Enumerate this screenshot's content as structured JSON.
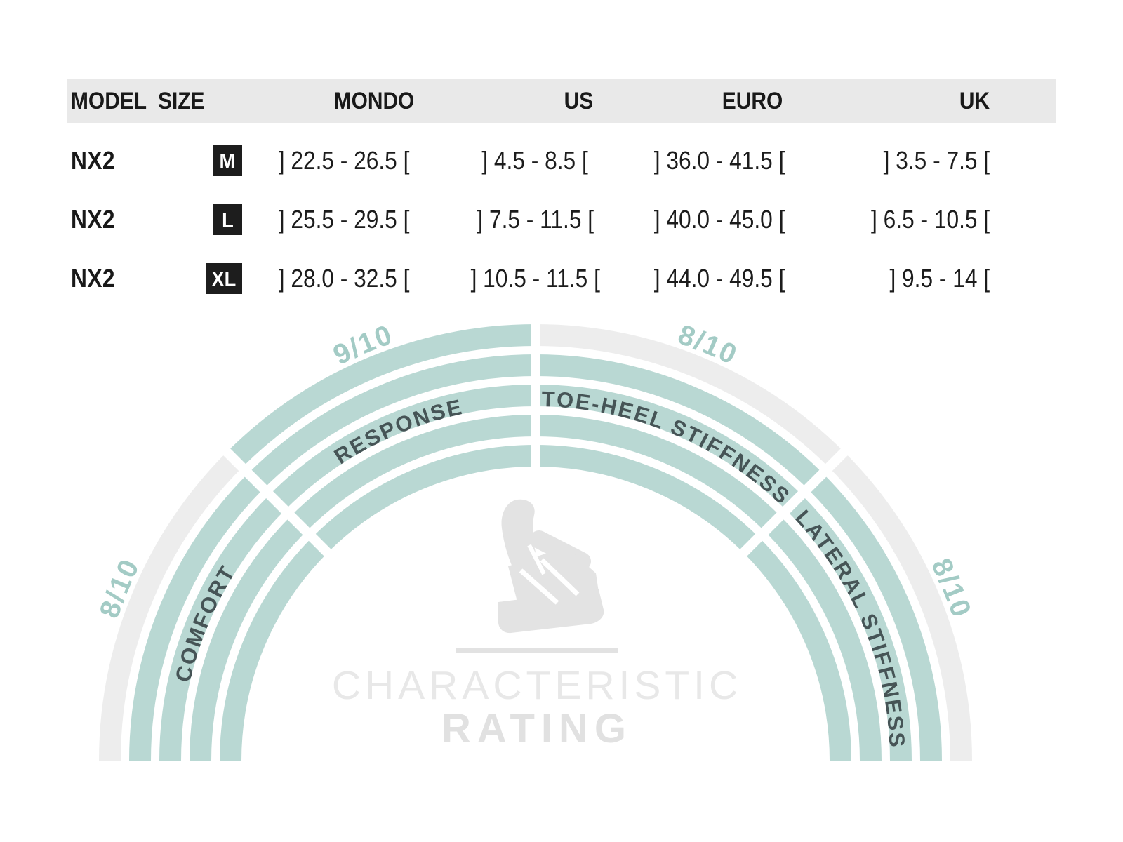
{
  "table": {
    "columns": [
      "MODEL",
      "SIZE",
      "MONDO",
      "US",
      "EURO",
      "UK"
    ],
    "rows": [
      {
        "model": "NX2",
        "size": "M",
        "mondo": "] 22.5 - 26.5 [",
        "us": "] 4.5 - 8.5 [",
        "euro": "] 36.0 - 41.5 [",
        "uk": "] 3.5 - 7.5 ["
      },
      {
        "model": "NX2",
        "size": "L",
        "mondo": "] 25.5 - 29.5 [",
        "us": "] 7.5 - 11.5 [",
        "euro": "] 40.0 - 45.0 [",
        "uk": "] 6.5 - 10.5 ["
      },
      {
        "model": "NX2",
        "size": "XL",
        "mondo": "] 28.0 - 32.5 [",
        "us": "] 10.5 - 11.5 [",
        "euro": "] 44.0 - 49.5 [",
        "uk": "] 9.5 - 14 ["
      }
    ]
  },
  "chart_data": {
    "type": "radial-rating",
    "title_line1": "CHARACTERISTIC",
    "title_line2": "RATING",
    "max": 10,
    "rings": 5,
    "legend_position": "center-bottom",
    "segments": [
      {
        "label": "COMFORT",
        "rating": 8,
        "display": "8/10"
      },
      {
        "label": "RESPONSE",
        "rating": 9,
        "display": "9/10"
      },
      {
        "label": "TOE-HEEL STIFFNESS",
        "rating": 8,
        "display": "8/10"
      },
      {
        "label": "LATERAL STIFFNESS",
        "rating": 8,
        "display": "8/10"
      }
    ],
    "colors": {
      "filled": "#b9d8d3",
      "unfilled": "#ededed",
      "label": "#465456",
      "score": "#a3cbc5",
      "title1": "#e8e8e8",
      "title2": "#e1e1e1",
      "divider": "#e2e2e2",
      "emblem": "#e3e3e3"
    }
  }
}
